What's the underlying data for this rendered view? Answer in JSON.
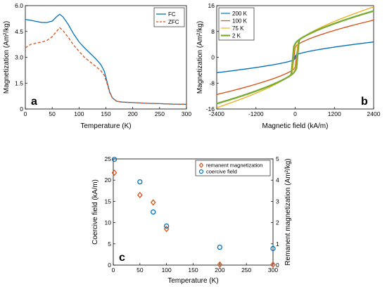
{
  "chart_data": [
    {
      "id": "a",
      "type": "line",
      "panel_label": "a",
      "xlabel": "Temperature (K)",
      "ylabel": "Magnetization (Am²/kg)",
      "xlim": [
        0,
        300
      ],
      "ylim": [
        0,
        6
      ],
      "xticks": [
        0,
        50,
        100,
        150,
        200,
        250,
        300
      ],
      "yticks": [
        {
          "v": 0,
          "label": "0"
        },
        {
          "v": 1.5,
          "label": "1.5"
        },
        {
          "v": 3,
          "label": "3.0"
        },
        {
          "v": 4.5,
          "label": "4.5"
        },
        {
          "v": 6,
          "label": "6.0"
        }
      ],
      "legend_position": "top-right",
      "series": [
        {
          "name": "FC",
          "color": "#0072bd",
          "dash": "solid",
          "points": [
            [
              0,
              5.2
            ],
            [
              10,
              5.15
            ],
            [
              20,
              5.08
            ],
            [
              30,
              5.03
            ],
            [
              40,
              5.02
            ],
            [
              50,
              5.1
            ],
            [
              58,
              5.35
            ],
            [
              64,
              5.5
            ],
            [
              70,
              5.35
            ],
            [
              80,
              4.9
            ],
            [
              90,
              4.35
            ],
            [
              100,
              3.9
            ],
            [
              110,
              3.55
            ],
            [
              120,
              3.25
            ],
            [
              130,
              2.95
            ],
            [
              140,
              2.6
            ],
            [
              147,
              2.2
            ],
            [
              152,
              1.6
            ],
            [
              157,
              1.0
            ],
            [
              162,
              0.65
            ],
            [
              170,
              0.45
            ],
            [
              180,
              0.4
            ],
            [
              200,
              0.37
            ],
            [
              225,
              0.33
            ],
            [
              250,
              0.31
            ],
            [
              275,
              0.28
            ],
            [
              300,
              0.27
            ]
          ]
        },
        {
          "name": "ZFC",
          "color": "#d95319",
          "dash": "dashed",
          "points": [
            [
              0,
              3.55
            ],
            [
              10,
              3.75
            ],
            [
              20,
              3.82
            ],
            [
              30,
              3.88
            ],
            [
              40,
              3.97
            ],
            [
              50,
              4.2
            ],
            [
              58,
              4.5
            ],
            [
              64,
              4.72
            ],
            [
              70,
              4.55
            ],
            [
              80,
              4.15
            ],
            [
              90,
              3.7
            ],
            [
              100,
              3.35
            ],
            [
              110,
              3.0
            ],
            [
              120,
              2.75
            ],
            [
              130,
              2.5
            ],
            [
              140,
              2.25
            ],
            [
              147,
              1.95
            ],
            [
              152,
              1.5
            ],
            [
              157,
              0.95
            ],
            [
              162,
              0.63
            ],
            [
              170,
              0.45
            ],
            [
              180,
              0.4
            ],
            [
              200,
              0.37
            ],
            [
              225,
              0.33
            ],
            [
              250,
              0.31
            ],
            [
              275,
              0.28
            ],
            [
              300,
              0.27
            ]
          ]
        }
      ]
    },
    {
      "id": "b",
      "type": "line",
      "panel_label": "b",
      "xlabel": "Magnetic field (kA/m)",
      "ylabel": "Magnetization (Am²/kg)",
      "xlim": [
        -2400,
        2400
      ],
      "ylim": [
        -16,
        16
      ],
      "xticks": [
        -2400,
        -1200,
        0,
        1200,
        2400
      ],
      "yticks": [
        {
          "v": -16,
          "label": "-16"
        },
        {
          "v": -8,
          "label": "-8"
        },
        {
          "v": 0,
          "label": "0"
        },
        {
          "v": 8,
          "label": "8"
        },
        {
          "v": 16,
          "label": "16"
        }
      ],
      "legend_position": "top-left",
      "series": [
        {
          "name": "200 K",
          "color": "#0072bd",
          "width": 1.2,
          "ms": 0.6,
          "chi": 1.6,
          "hc": 18
        },
        {
          "name": "100 K",
          "color": "#d95319",
          "width": 1.2,
          "ms": 3.2,
          "chi": 3.2,
          "hc": 40
        },
        {
          "name": "75 K",
          "color": "#edb120",
          "width": 1.2,
          "ms": 3.9,
          "chi": 4.5,
          "hc": 55
        },
        {
          "name": "2 K",
          "color": "#77ac30",
          "width": 2.2,
          "ms": 4.2,
          "chi": 3.9,
          "hc": 80
        }
      ]
    },
    {
      "id": "c",
      "type": "scatter",
      "panel_label": "c",
      "xlabel": "Temperature (K)",
      "ylabel_left": "Coercive field (kA/m)",
      "ylabel_right": "Remanent magnetization (Am²/kg)",
      "xlim": [
        0,
        300
      ],
      "ylim_left": [
        0,
        25
      ],
      "ylim_right": [
        0,
        5
      ],
      "xticks": [
        0,
        50,
        100,
        150,
        200,
        250,
        300
      ],
      "yticks_left": [
        0,
        5,
        10,
        15,
        20,
        25
      ],
      "yticks_right": [
        0,
        1,
        2,
        3,
        4,
        5
      ],
      "legend_position": "top-right",
      "series": [
        {
          "name": "remanent magnetization",
          "marker": "diamond",
          "color": "#d95319",
          "axis": "right",
          "points": [
            [
              2,
              4.35
            ],
            [
              50,
              3.3
            ],
            [
              75,
              2.95
            ],
            [
              100,
              1.7
            ],
            [
              200,
              0.02
            ],
            [
              300,
              0.02
            ]
          ]
        },
        {
          "name": "coercive field",
          "marker": "circle",
          "color": "#0072bd",
          "axis": "left",
          "points": [
            [
              2,
              24.9
            ],
            [
              50,
              19.6
            ],
            [
              75,
              12.5
            ],
            [
              100,
              9.2
            ],
            [
              200,
              4.2
            ],
            [
              300,
              3.9
            ]
          ]
        }
      ]
    }
  ]
}
